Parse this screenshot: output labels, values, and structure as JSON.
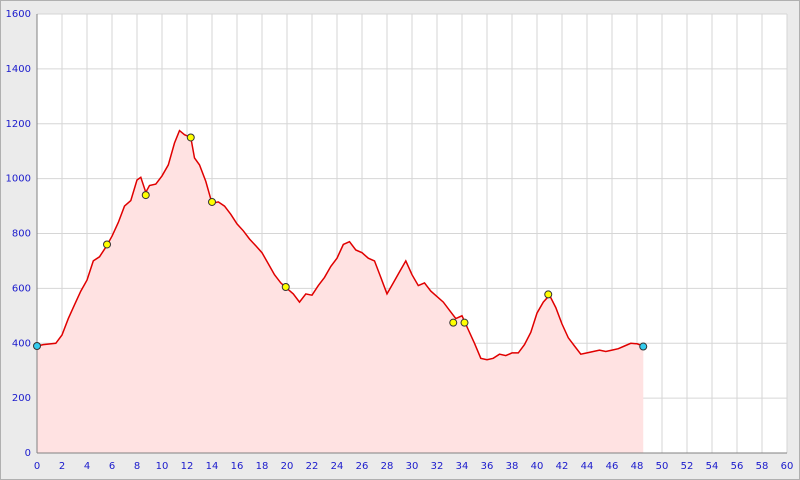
{
  "chart_data": {
    "type": "area",
    "x": [
      0,
      0.5,
      1.5,
      2,
      2.5,
      3,
      3.5,
      4,
      4.5,
      5,
      5.5,
      6,
      6.5,
      7,
      7.5,
      8,
      8.3,
      8.7,
      9,
      9.5,
      10,
      10.5,
      11,
      11.4,
      11.8,
      12.3,
      12.6,
      13,
      13.5,
      14,
      14.5,
      15,
      15.5,
      16,
      16.5,
      17,
      17.5,
      18,
      18.5,
      19,
      19.5,
      20,
      20.5,
      21,
      21.5,
      22,
      22.5,
      23,
      23.5,
      24,
      24.5,
      25,
      25.5,
      26,
      26.5,
      27,
      27.5,
      28,
      28.5,
      29,
      29.5,
      30,
      30.5,
      31,
      31.5,
      32,
      32.5,
      33,
      33.5,
      34,
      34.5,
      35,
      35.5,
      36,
      36.5,
      37,
      37.5,
      38,
      38.5,
      39,
      39.5,
      40,
      40.5,
      41,
      41.5,
      42,
      42.5,
      43,
      43.5,
      44,
      44.5,
      45,
      45.5,
      46,
      46.5,
      47,
      47.5,
      48,
      48.5
    ],
    "values": [
      390,
      395,
      400,
      430,
      490,
      540,
      590,
      630,
      700,
      715,
      750,
      790,
      840,
      900,
      920,
      995,
      1005,
      950,
      975,
      980,
      1010,
      1050,
      1130,
      1175,
      1160,
      1150,
      1075,
      1050,
      990,
      910,
      915,
      900,
      870,
      835,
      810,
      780,
      755,
      730,
      690,
      650,
      620,
      600,
      580,
      550,
      580,
      575,
      610,
      640,
      680,
      710,
      760,
      770,
      740,
      730,
      710,
      700,
      640,
      580,
      620,
      660,
      700,
      650,
      610,
      620,
      590,
      570,
      550,
      520,
      490,
      500,
      450,
      400,
      345,
      340,
      345,
      360,
      355,
      365,
      365,
      395,
      440,
      510,
      550,
      575,
      530,
      470,
      420,
      390,
      360,
      365,
      370,
      375,
      370,
      375,
      380,
      390,
      400,
      398,
      390
    ],
    "color": "#e00000",
    "fill": "#ffe2e2",
    "waypoints": {
      "x": [
        5.6,
        8.7,
        12.3,
        14,
        19.9,
        33.3,
        34.2,
        40.9
      ],
      "values": [
        760,
        940,
        1150,
        915,
        605,
        475,
        475,
        578
      ],
      "color": "#ffff00"
    },
    "endpoints": {
      "x": [
        0,
        48.5
      ],
      "values": [
        390,
        388
      ],
      "color": "#33ccee"
    },
    "xlim": [
      0,
      60
    ],
    "xticks": [
      0,
      2,
      4,
      6,
      8,
      10,
      12,
      14,
      16,
      18,
      20,
      22,
      24,
      26,
      28,
      30,
      32,
      34,
      36,
      38,
      40,
      42,
      44,
      46,
      48,
      50,
      52,
      54,
      56,
      58,
      60
    ],
    "ylim": [
      0,
      1600
    ],
    "yticks": [
      0,
      200,
      400,
      600,
      800,
      1000,
      1200,
      1400,
      1600
    ],
    "grid": true
  }
}
